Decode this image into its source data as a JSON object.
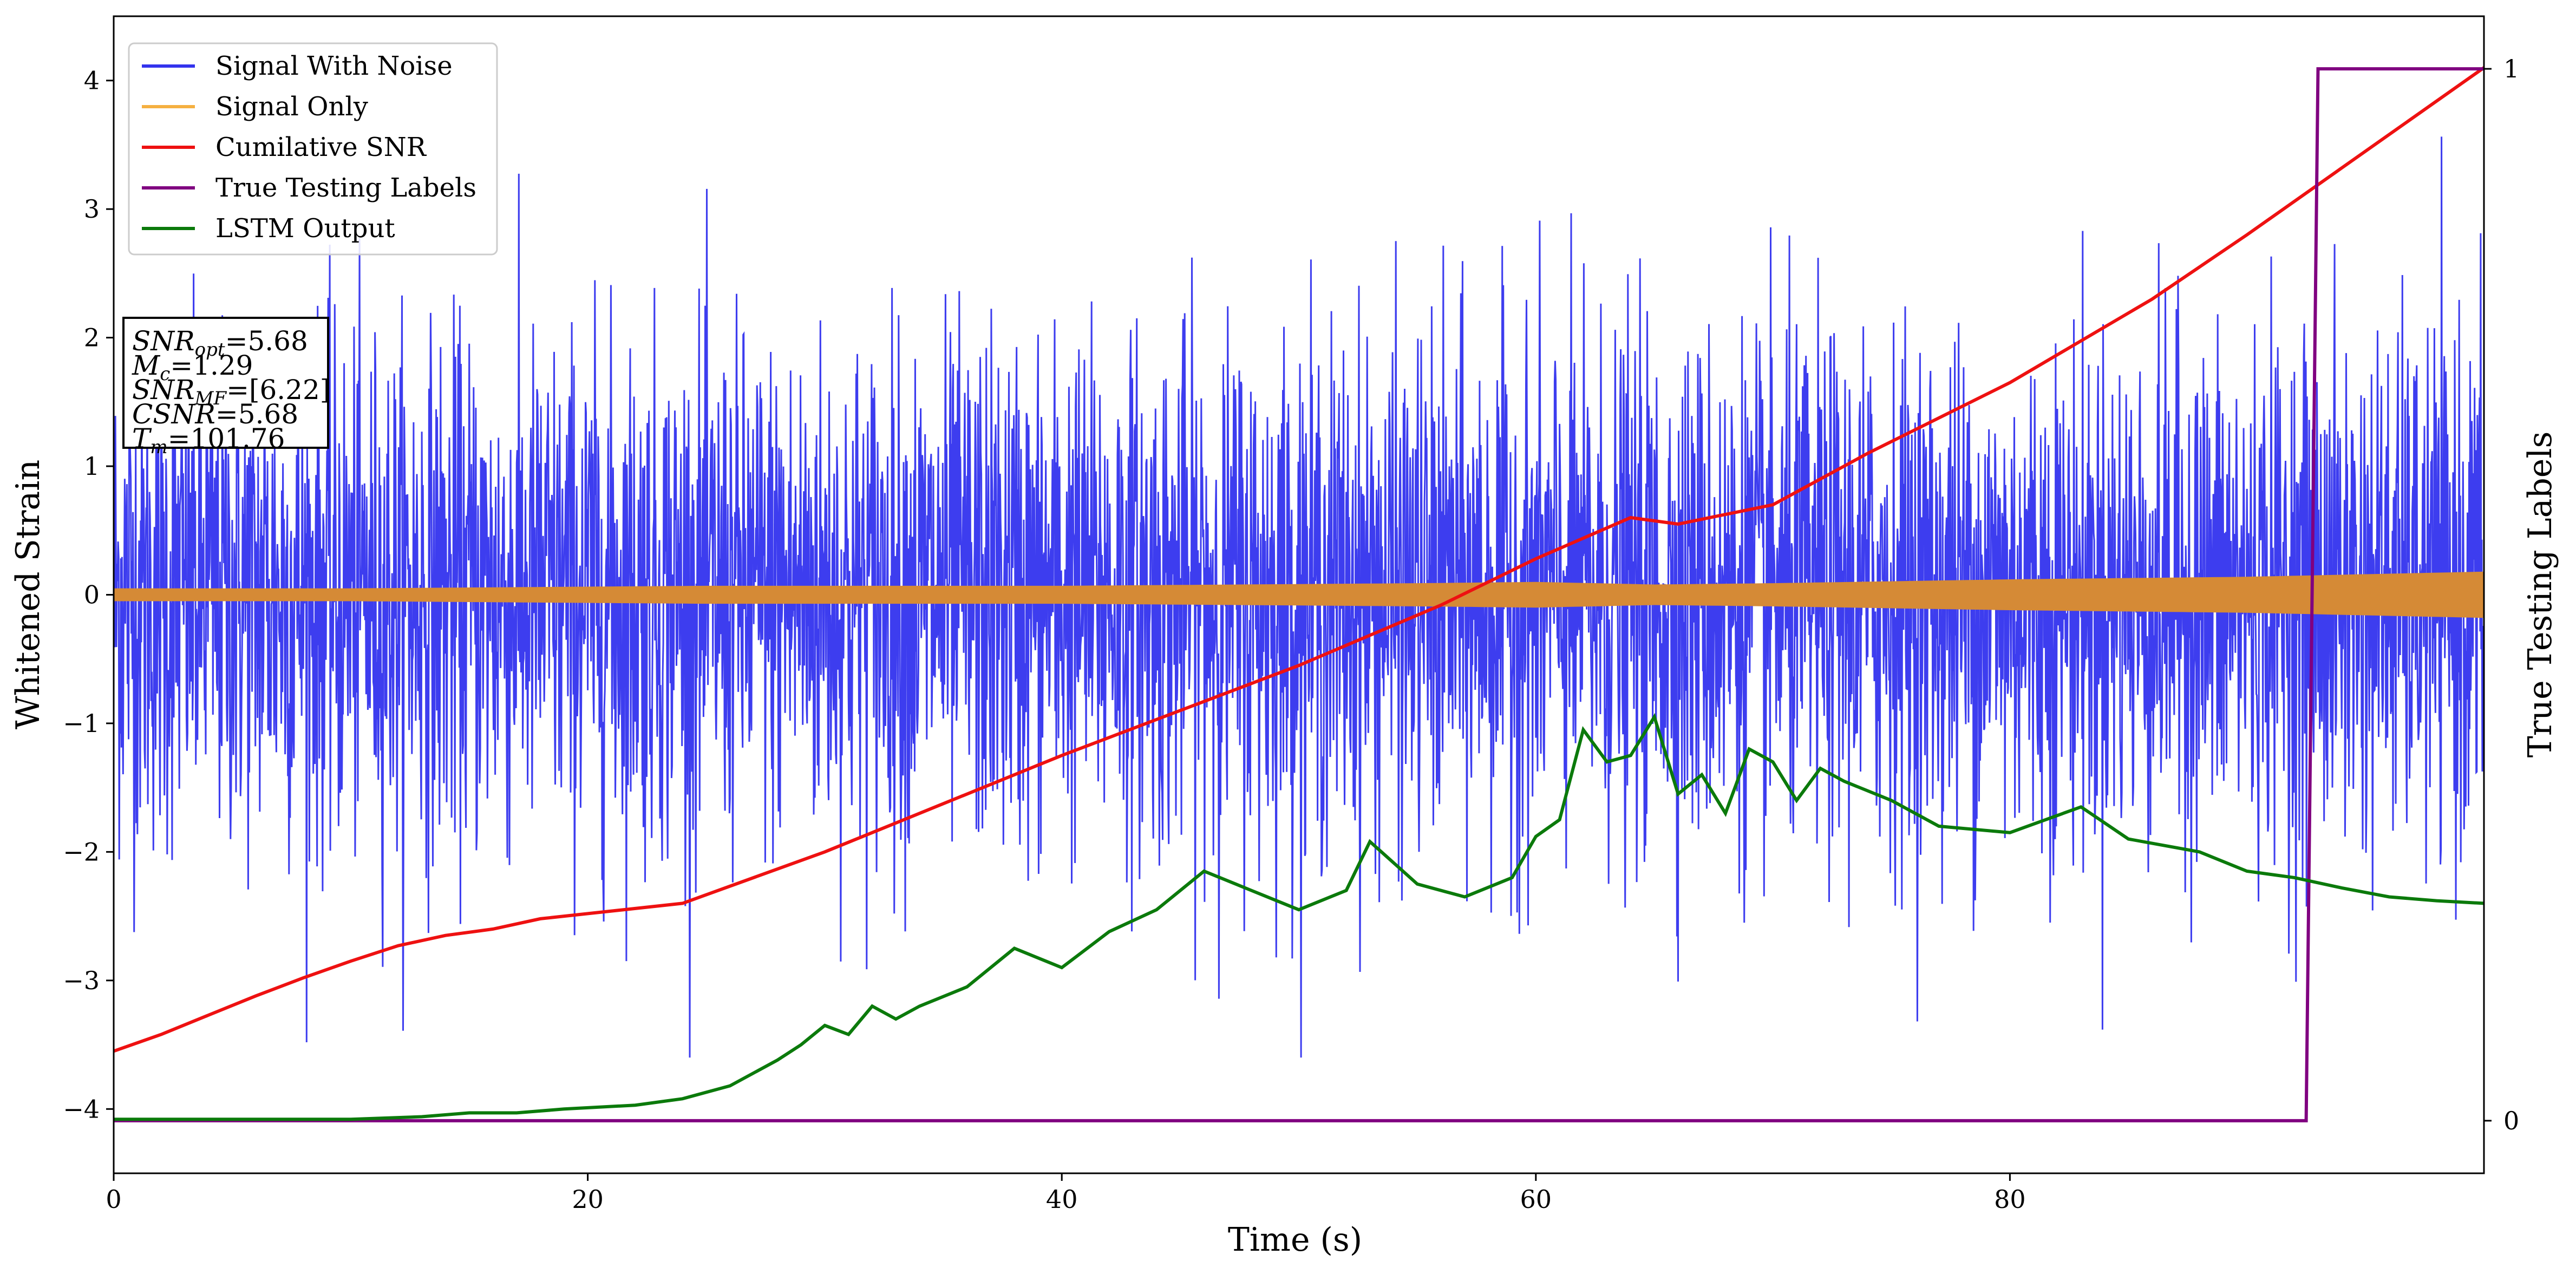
{
  "chart_data": {
    "type": "line",
    "xlabel": "Time (s)",
    "ylabel": "Whitened Strain",
    "ylabel_right": "True Testing Labels",
    "xlim": [
      0,
      100
    ],
    "ylim": [
      -4.5,
      4.5
    ],
    "ylim_right": [
      -0.05,
      1.05
    ],
    "x_ticks": [
      0,
      20,
      40,
      60,
      80
    ],
    "y_ticks": [
      -4,
      -3,
      -2,
      -1,
      0,
      1,
      2,
      3,
      4
    ],
    "y_ticks_right": [
      0,
      1
    ],
    "grid": false,
    "legend_position": "top-left",
    "legend": [
      {
        "label": "Signal With Noise",
        "color": "#3333ee"
      },
      {
        "label": "Signal Only",
        "color": "#f5b041"
      },
      {
        "label": "Cumilative SNR",
        "color": "#ee1111"
      },
      {
        "label": "True Testing Labels",
        "color": "#800080"
      },
      {
        "label": "LSTM Output",
        "color": "#0b7a0b"
      }
    ],
    "annotation": [
      {
        "sym": "SNR",
        "sub": "opt",
        "value": "5.68"
      },
      {
        "sym": "M",
        "sub": "c",
        "value": "1.29"
      },
      {
        "sym": "SNR",
        "sub": "MF",
        "value": "[6.22]"
      },
      {
        "sym": "CSNR",
        "sub": "",
        "value": "5.68"
      },
      {
        "sym": "T",
        "sub": "m",
        "value": "101.76"
      }
    ],
    "series": [
      {
        "name": "Signal With Noise",
        "axis": "left",
        "color": "#3333ee",
        "noise_std": 1.0,
        "max_abs": 3.6
      },
      {
        "name": "Signal Only",
        "axis": "left",
        "color": "#d58a36",
        "envelope": {
          "x": [
            0,
            10,
            25,
            40,
            55,
            60,
            65,
            70,
            80,
            90,
            100
          ],
          "y": [
            0.05,
            0.05,
            0.07,
            0.07,
            0.09,
            0.1,
            0.08,
            0.09,
            0.12,
            0.14,
            0.18
          ]
        }
      },
      {
        "name": "Cumilative SNR",
        "axis": "left",
        "color": "#ee1111",
        "x": [
          0,
          2,
          4,
          6,
          8,
          10,
          12,
          14,
          16,
          18,
          20,
          24,
          30,
          40,
          50,
          56,
          60,
          64,
          66,
          70,
          74,
          80,
          86,
          90,
          94,
          100
        ],
        "y": [
          -3.55,
          -3.42,
          -3.27,
          -3.12,
          -2.98,
          -2.85,
          -2.73,
          -2.65,
          -2.6,
          -2.52,
          -2.48,
          -2.4,
          -2.0,
          -1.25,
          -0.55,
          -0.08,
          0.28,
          0.6,
          0.55,
          0.7,
          1.1,
          1.65,
          2.3,
          2.8,
          3.32,
          4.1
        ]
      },
      {
        "name": "True Testing Labels",
        "axis": "right",
        "color": "#800080",
        "x": [
          0,
          92.5,
          93.0,
          100
        ],
        "y": [
          0,
          0,
          1,
          1
        ]
      },
      {
        "name": "LSTM Output",
        "axis": "left",
        "color": "#0b7a0b",
        "x": [
          0,
          10,
          13,
          15,
          17,
          19,
          22,
          24,
          26,
          28,
          29,
          30,
          31,
          32,
          33,
          34,
          36,
          38,
          40,
          42,
          44,
          46,
          48,
          50,
          52,
          53,
          55,
          57,
          59,
          60,
          61,
          62,
          63,
          64,
          65,
          66,
          67,
          68,
          69,
          70,
          71,
          72,
          73,
          75,
          77,
          80,
          83,
          85,
          88,
          90,
          92,
          94,
          96,
          98,
          100
        ],
        "y": [
          -4.08,
          -4.08,
          -4.06,
          -4.03,
          -4.03,
          -4.0,
          -3.97,
          -3.92,
          -3.82,
          -3.62,
          -3.5,
          -3.35,
          -3.42,
          -3.2,
          -3.3,
          -3.2,
          -3.05,
          -2.75,
          -2.9,
          -2.62,
          -2.45,
          -2.15,
          -2.3,
          -2.45,
          -2.3,
          -1.92,
          -2.25,
          -2.35,
          -2.2,
          -1.88,
          -1.75,
          -1.05,
          -1.3,
          -1.25,
          -0.95,
          -1.55,
          -1.4,
          -1.7,
          -1.2,
          -1.3,
          -1.6,
          -1.35,
          -1.45,
          -1.6,
          -1.8,
          -1.85,
          -1.65,
          -1.9,
          -2.0,
          -2.15,
          -2.2,
          -2.28,
          -2.35,
          -2.38,
          -2.4
        ]
      }
    ]
  }
}
